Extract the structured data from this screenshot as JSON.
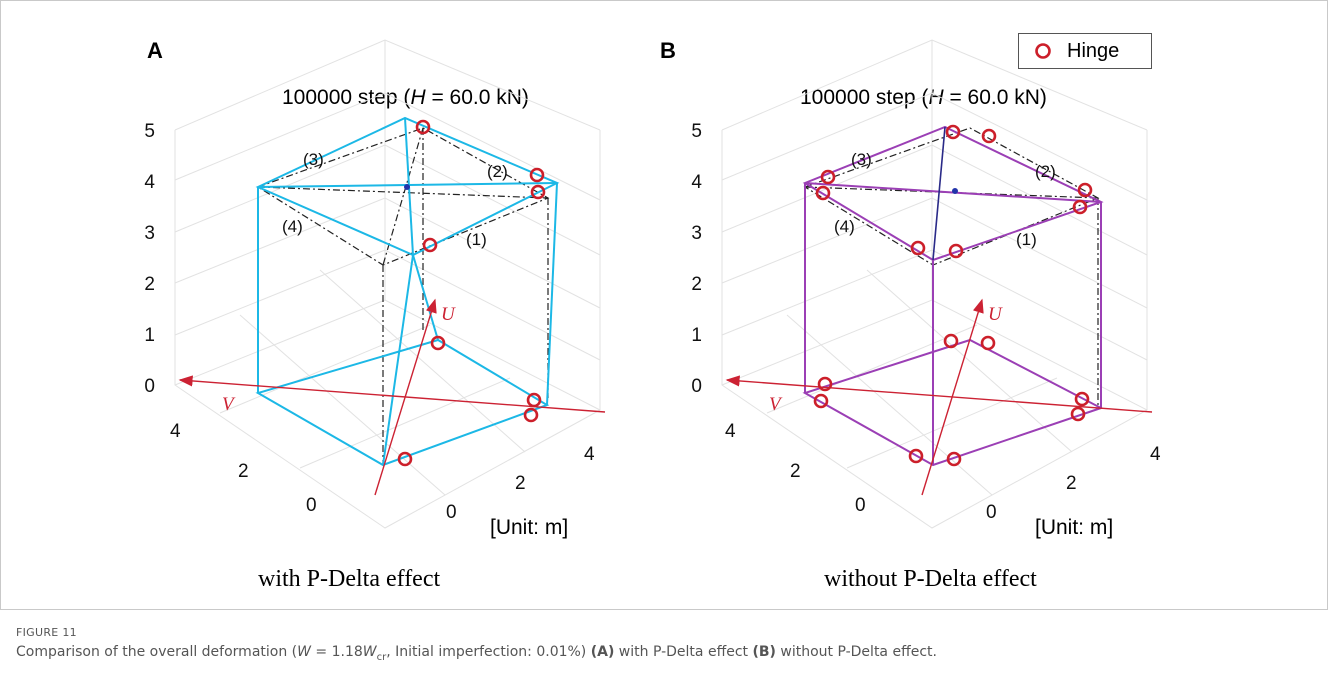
{
  "panels": [
    {
      "letter": "A",
      "title_prefix": "100000 step (",
      "title_var": "H",
      "title_suffix": " = 60.0 kN)",
      "subcaption": "with P-Delta effect",
      "color": "#1cb8e6"
    },
    {
      "letter": "B",
      "title_prefix": "100000 step (",
      "title_var": "H",
      "title_suffix": " = 60.0 kN)",
      "subcaption": "without P-Delta effect",
      "color": "#9b3fb5"
    }
  ],
  "member_labels": [
    "(1)",
    "(2)",
    "(3)",
    "(4)"
  ],
  "axis_labels": {
    "u": "U",
    "v": "V",
    "unit": "[Unit: m]"
  },
  "z_ticks": [
    "0",
    "1",
    "2",
    "3",
    "4",
    "5"
  ],
  "x_ticks": [
    "0",
    "2",
    "4"
  ],
  "y_ticks": [
    "0",
    "2",
    "4"
  ],
  "legend": {
    "label": "Hinge",
    "marker_color": "#cc1f2a"
  },
  "caption": {
    "figure_label": "FIGURE 11",
    "text_1": "Comparison of the overall deformation (",
    "w_var": "W",
    "text_eq": " = 1.18",
    "w_var_2": "W",
    "w_sub": "cr",
    "text_2": ", Initial imperfection: 0.01%) ",
    "a_label": "(A)",
    "text_3": " with P-Delta effect ",
    "b_label": "(B)",
    "text_4": " without P-Delta effect."
  }
}
